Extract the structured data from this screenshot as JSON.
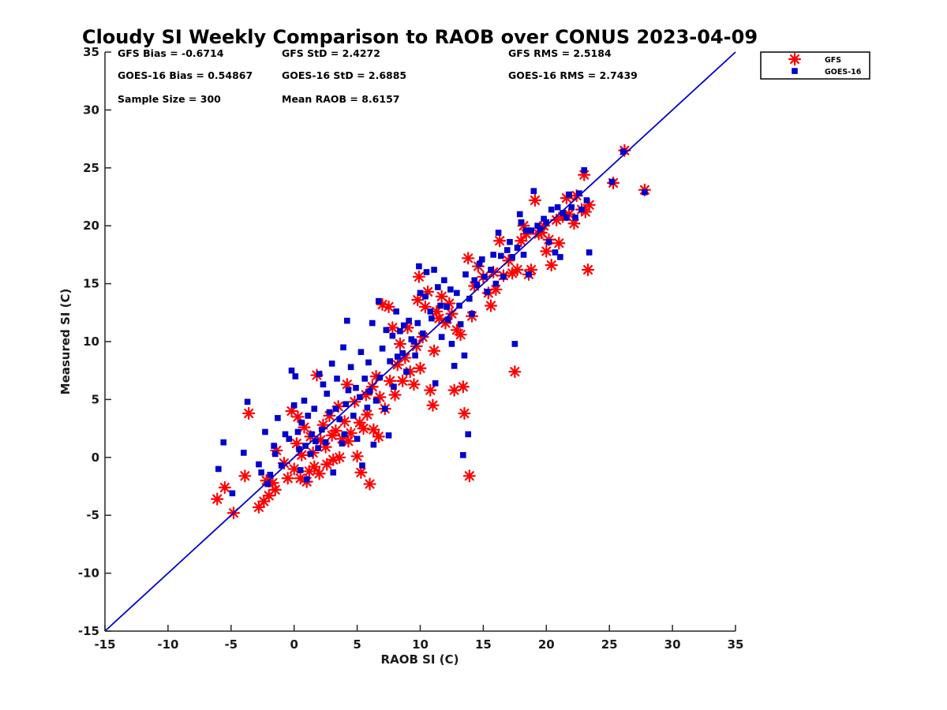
{
  "chart_data": {
    "type": "scatter",
    "title": "Cloudy SI Weekly Comparison to RAOB over CONUS 2023-04-09",
    "xlabel": "RAOB SI (C)",
    "ylabel": "Measured SI (C)",
    "xlim": [
      -15,
      35
    ],
    "ylim": [
      -15,
      35
    ],
    "xticks": [
      -15,
      -10,
      -5,
      0,
      5,
      10,
      15,
      20,
      25,
      30,
      35
    ],
    "yticks": [
      -15,
      -10,
      -5,
      0,
      5,
      10,
      15,
      20,
      25,
      30,
      35
    ],
    "grid": false,
    "legend_position": "top-right, outside plot",
    "reference_line": {
      "x": [
        -15,
        35
      ],
      "y": [
        -15,
        35
      ],
      "color": "#0000cc"
    },
    "stats": {
      "gfs_bias": "GFS Bias = -0.6714",
      "gfs_std": "GFS StD = 2.4272",
      "gfs_rms": "GFS RMS = 2.5184",
      "goes_bias": "GOES-16 Bias = 0.54867",
      "goes_std": "GOES-16 StD = 2.6885",
      "goes_rms": "GOES-16 RMS = 2.7439",
      "sample_size": "Sample Size = 300",
      "mean_raob": "Mean RAOB = 8.6157"
    },
    "series": [
      {
        "name": "GFS",
        "marker": "asterisk",
        "color": "#ff0000",
        "points": [
          [
            -6.1,
            -3.6
          ],
          [
            -5.5,
            -2.6
          ],
          [
            -4.8,
            -4.8
          ],
          [
            -3.9,
            -1.6
          ],
          [
            -3.6,
            3.8
          ],
          [
            -2.8,
            -4.3
          ],
          [
            -2.4,
            -3.8
          ],
          [
            -2.2,
            -2.0
          ],
          [
            -2.0,
            -3.3
          ],
          [
            -1.7,
            -2.2
          ],
          [
            -1.5,
            -2.8
          ],
          [
            -1.4,
            0.6
          ],
          [
            -0.8,
            -0.5
          ],
          [
            -0.5,
            -1.8
          ],
          [
            -0.2,
            4.0
          ],
          [
            0.0,
            -1.0
          ],
          [
            0.2,
            1.2
          ],
          [
            0.3,
            3.5
          ],
          [
            0.5,
            -1.8
          ],
          [
            0.6,
            0.2
          ],
          [
            0.8,
            2.6
          ],
          [
            1.0,
            -2.1
          ],
          [
            1.2,
            -1.2
          ],
          [
            1.3,
            1.8
          ],
          [
            1.5,
            0.4
          ],
          [
            1.6,
            -0.8
          ],
          [
            1.8,
            7.1
          ],
          [
            2.0,
            -1.4
          ],
          [
            2.1,
            1.5
          ],
          [
            2.3,
            2.8
          ],
          [
            2.5,
            0.9
          ],
          [
            2.6,
            -0.6
          ],
          [
            2.8,
            3.6
          ],
          [
            3.0,
            1.9
          ],
          [
            3.1,
            -0.2
          ],
          [
            3.3,
            2.3
          ],
          [
            3.5,
            4.4
          ],
          [
            3.6,
            0.0
          ],
          [
            3.8,
            1.6
          ],
          [
            4.0,
            3.1
          ],
          [
            4.2,
            6.3
          ],
          [
            4.3,
            1.4
          ],
          [
            4.5,
            2.1
          ],
          [
            4.8,
            4.8
          ],
          [
            5.0,
            0.1
          ],
          [
            5.2,
            3.0
          ],
          [
            5.3,
            -1.3
          ],
          [
            5.5,
            2.5
          ],
          [
            5.7,
            5.4
          ],
          [
            5.8,
            3.7
          ],
          [
            6.0,
            -2.3
          ],
          [
            6.2,
            6.1
          ],
          [
            6.3,
            2.4
          ],
          [
            6.5,
            7.0
          ],
          [
            6.7,
            1.8
          ],
          [
            6.8,
            5.2
          ],
          [
            7.0,
            13.2
          ],
          [
            7.2,
            4.2
          ],
          [
            7.5,
            13.0
          ],
          [
            7.6,
            6.6
          ],
          [
            7.8,
            11.2
          ],
          [
            8.0,
            5.4
          ],
          [
            8.2,
            8.0
          ],
          [
            8.4,
            9.8
          ],
          [
            8.6,
            6.6
          ],
          [
            8.8,
            8.6
          ],
          [
            9.0,
            11.2
          ],
          [
            9.2,
            7.4
          ],
          [
            9.5,
            6.3
          ],
          [
            9.7,
            9.6
          ],
          [
            9.8,
            13.6
          ],
          [
            9.9,
            15.6
          ],
          [
            10.0,
            7.7
          ],
          [
            10.2,
            10.4
          ],
          [
            10.4,
            13.0
          ],
          [
            10.6,
            14.3
          ],
          [
            10.8,
            5.8
          ],
          [
            11.0,
            4.5
          ],
          [
            11.1,
            9.2
          ],
          [
            11.3,
            12.6
          ],
          [
            11.5,
            12.0
          ],
          [
            11.7,
            13.9
          ],
          [
            12.0,
            11.6
          ],
          [
            12.3,
            13.3
          ],
          [
            12.5,
            12.4
          ],
          [
            12.7,
            5.8
          ],
          [
            12.9,
            11.0
          ],
          [
            13.2,
            10.6
          ],
          [
            13.4,
            6.1
          ],
          [
            13.5,
            3.8
          ],
          [
            13.8,
            17.2
          ],
          [
            13.9,
            -1.6
          ],
          [
            14.1,
            12.2
          ],
          [
            14.3,
            14.8
          ],
          [
            14.6,
            16.5
          ],
          [
            15.0,
            15.6
          ],
          [
            15.4,
            14.2
          ],
          [
            15.6,
            13.1
          ],
          [
            15.8,
            16.0
          ],
          [
            16.0,
            14.5
          ],
          [
            16.3,
            18.7
          ],
          [
            16.6,
            15.7
          ],
          [
            17.0,
            17.0
          ],
          [
            17.3,
            15.9
          ],
          [
            17.5,
            7.4
          ],
          [
            17.7,
            16.2
          ],
          [
            18.0,
            18.7
          ],
          [
            18.2,
            20.0
          ],
          [
            18.4,
            19.3
          ],
          [
            18.6,
            15.8
          ],
          [
            18.8,
            16.2
          ],
          [
            19.1,
            22.2
          ],
          [
            19.4,
            19.3
          ],
          [
            19.6,
            19.4
          ],
          [
            19.8,
            20.0
          ],
          [
            20.0,
            17.8
          ],
          [
            20.2,
            18.8
          ],
          [
            20.4,
            16.6
          ],
          [
            20.8,
            20.5
          ],
          [
            21.0,
            18.5
          ],
          [
            21.3,
            20.8
          ],
          [
            21.6,
            22.4
          ],
          [
            21.8,
            21.0
          ],
          [
            22.2,
            20.2
          ],
          [
            22.4,
            22.6
          ],
          [
            22.8,
            21.4
          ],
          [
            23.0,
            24.4
          ],
          [
            23.1,
            21.2
          ],
          [
            23.3,
            16.2
          ],
          [
            23.4,
            21.8
          ],
          [
            25.3,
            23.7
          ],
          [
            26.2,
            26.5
          ],
          [
            27.8,
            23.1
          ]
        ]
      },
      {
        "name": "GOES-16",
        "marker": "square",
        "color": "#0000cc",
        "points": [
          [
            -6.0,
            -1.0
          ],
          [
            -5.6,
            1.3
          ],
          [
            -4.9,
            -3.1
          ],
          [
            -4.0,
            0.4
          ],
          [
            -3.7,
            4.8
          ],
          [
            -2.8,
            -0.6
          ],
          [
            -2.6,
            -1.3
          ],
          [
            -2.3,
            2.2
          ],
          [
            -2.1,
            -2.3
          ],
          [
            -1.9,
            -1.5
          ],
          [
            -1.6,
            1.0
          ],
          [
            -1.5,
            0.3
          ],
          [
            -1.3,
            3.4
          ],
          [
            -1.0,
            -0.7
          ],
          [
            -0.7,
            2.0
          ],
          [
            -0.4,
            1.6
          ],
          [
            -0.2,
            7.5
          ],
          [
            0.0,
            4.5
          ],
          [
            0.1,
            7.0
          ],
          [
            0.3,
            2.2
          ],
          [
            0.4,
            0.7
          ],
          [
            0.5,
            -1.1
          ],
          [
            0.6,
            3.0
          ],
          [
            0.8,
            4.9
          ],
          [
            0.9,
            1.0
          ],
          [
            1.0,
            -1.9
          ],
          [
            1.1,
            3.6
          ],
          [
            1.3,
            0.3
          ],
          [
            1.4,
            2.0
          ],
          [
            1.6,
            4.2
          ],
          [
            1.7,
            1.4
          ],
          [
            1.9,
            0.8
          ],
          [
            2.0,
            7.2
          ],
          [
            2.2,
            2.4
          ],
          [
            2.3,
            6.3
          ],
          [
            2.5,
            1.3
          ],
          [
            2.6,
            5.5
          ],
          [
            2.8,
            3.9
          ],
          [
            3.0,
            8.1
          ],
          [
            3.1,
            -1.3
          ],
          [
            3.3,
            4.2
          ],
          [
            3.4,
            6.8
          ],
          [
            3.6,
            3.3
          ],
          [
            3.8,
            1.2
          ],
          [
            3.9,
            9.5
          ],
          [
            4.0,
            2.0
          ],
          [
            4.1,
            4.6
          ],
          [
            4.2,
            11.8
          ],
          [
            4.3,
            5.8
          ],
          [
            4.5,
            7.8
          ],
          [
            4.7,
            3.6
          ],
          [
            4.9,
            6.0
          ],
          [
            5.0,
            1.6
          ],
          [
            5.2,
            5.2
          ],
          [
            5.3,
            9.1
          ],
          [
            5.4,
            -0.7
          ],
          [
            5.6,
            6.8
          ],
          [
            5.8,
            4.3
          ],
          [
            5.9,
            8.2
          ],
          [
            6.0,
            5.7
          ],
          [
            6.2,
            11.6
          ],
          [
            6.3,
            1.1
          ],
          [
            6.5,
            4.9
          ],
          [
            6.7,
            13.5
          ],
          [
            6.8,
            6.9
          ],
          [
            7.0,
            9.4
          ],
          [
            7.2,
            4.2
          ],
          [
            7.3,
            11.0
          ],
          [
            7.5,
            1.9
          ],
          [
            7.6,
            8.3
          ],
          [
            7.8,
            10.5
          ],
          [
            7.9,
            6.1
          ],
          [
            8.1,
            12.6
          ],
          [
            8.2,
            8.7
          ],
          [
            8.4,
            10.9
          ],
          [
            8.6,
            9.0
          ],
          [
            8.7,
            11.4
          ],
          [
            8.9,
            7.4
          ],
          [
            9.1,
            11.8
          ],
          [
            9.3,
            10.2
          ],
          [
            9.5,
            10.0
          ],
          [
            9.6,
            8.8
          ],
          [
            9.8,
            11.6
          ],
          [
            9.9,
            16.5
          ],
          [
            10.0,
            14.2
          ],
          [
            10.2,
            10.7
          ],
          [
            10.4,
            13.9
          ],
          [
            10.5,
            16.0
          ],
          [
            10.8,
            12.6
          ],
          [
            10.9,
            12.0
          ],
          [
            11.1,
            16.2
          ],
          [
            11.2,
            6.4
          ],
          [
            11.4,
            14.7
          ],
          [
            11.6,
            13.1
          ],
          [
            11.7,
            10.4
          ],
          [
            11.9,
            15.3
          ],
          [
            12.1,
            13.0
          ],
          [
            12.2,
            11.9
          ],
          [
            12.4,
            14.5
          ],
          [
            12.5,
            9.8
          ],
          [
            12.7,
            7.9
          ],
          [
            12.9,
            14.2
          ],
          [
            13.1,
            13.1
          ],
          [
            13.2,
            11.5
          ],
          [
            13.4,
            0.2
          ],
          [
            13.5,
            8.8
          ],
          [
            13.6,
            15.8
          ],
          [
            13.8,
            2.0
          ],
          [
            13.9,
            13.7
          ],
          [
            14.1,
            12.4
          ],
          [
            14.3,
            15.3
          ],
          [
            14.5,
            14.9
          ],
          [
            14.7,
            16.7
          ],
          [
            14.9,
            17.1
          ],
          [
            15.1,
            15.6
          ],
          [
            15.3,
            14.3
          ],
          [
            15.6,
            16.2
          ],
          [
            15.8,
            17.5
          ],
          [
            16.0,
            15.0
          ],
          [
            16.2,
            19.4
          ],
          [
            16.4,
            17.4
          ],
          [
            16.6,
            15.6
          ],
          [
            16.9,
            17.9
          ],
          [
            17.1,
            18.6
          ],
          [
            17.3,
            17.3
          ],
          [
            17.5,
            9.8
          ],
          [
            17.7,
            18.1
          ],
          [
            17.9,
            21.0
          ],
          [
            18.0,
            20.3
          ],
          [
            18.2,
            17.5
          ],
          [
            18.4,
            19.6
          ],
          [
            18.6,
            15.8
          ],
          [
            18.8,
            19.6
          ],
          [
            19.0,
            23.0
          ],
          [
            19.3,
            20.0
          ],
          [
            19.5,
            19.7
          ],
          [
            19.8,
            20.6
          ],
          [
            20.0,
            20.3
          ],
          [
            20.2,
            18.6
          ],
          [
            20.4,
            21.4
          ],
          [
            20.7,
            17.7
          ],
          [
            20.9,
            21.6
          ],
          [
            21.1,
            17.3
          ],
          [
            21.3,
            21.1
          ],
          [
            21.6,
            20.7
          ],
          [
            21.8,
            22.7
          ],
          [
            22.0,
            21.6
          ],
          [
            22.3,
            20.7
          ],
          [
            22.6,
            22.8
          ],
          [
            22.8,
            21.4
          ],
          [
            23.0,
            24.8
          ],
          [
            23.2,
            22.2
          ],
          [
            23.4,
            17.7
          ],
          [
            25.2,
            23.8
          ],
          [
            26.1,
            26.4
          ],
          [
            27.8,
            22.9
          ]
        ]
      }
    ]
  }
}
